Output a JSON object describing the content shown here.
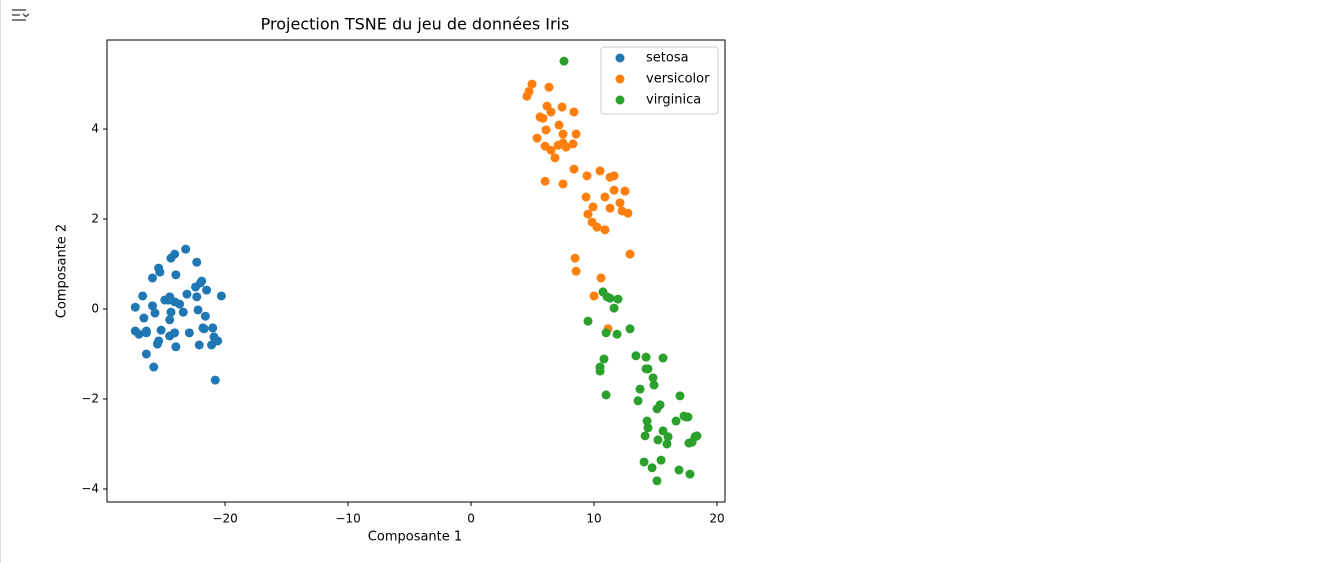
{
  "chart_data": {
    "type": "scatter",
    "title": "Projection TSNE du jeu de données Iris",
    "xlabel": "Composante 1",
    "ylabel": "Composante 2",
    "xlim": [
      -29.6,
      20.65
    ],
    "ylim": [
      -4.29,
      5.98
    ],
    "xticks": [
      {
        "value": -20,
        "label": "−20"
      },
      {
        "value": -10,
        "label": "−10"
      },
      0,
      10,
      20
    ],
    "yticks": [
      {
        "value": -4,
        "label": "−4"
      },
      {
        "value": -2,
        "label": "−2"
      },
      0,
      2,
      4
    ],
    "legend": "upper right",
    "series": [
      {
        "name": "setosa",
        "color": "#1f77b4",
        "x": [
          -27.3,
          -27.0,
          -26.4,
          -27.3,
          -26.7,
          -26.6,
          -26.4,
          -25.9,
          -25.7,
          -25.9,
          -25.4,
          -25.3,
          -26.4,
          -25.5,
          -25.4,
          -25.8,
          -25.2,
          -24.9,
          -24.5,
          -24.4,
          -24.5,
          -24.1,
          -24.0,
          -24.4,
          -24.1,
          -23.2,
          -23.1,
          -23.4,
          -24.1,
          -24.0,
          -24.5,
          -22.9,
          -22.3,
          -22.4,
          -22.0,
          -21.9,
          -22.2,
          -21.8,
          -22.1,
          -21.5,
          -21.6,
          -21.0,
          -21.1,
          -20.9,
          -20.6,
          -20.3,
          -20.8,
          -21.7,
          -22.3,
          -24.6,
          -23.7
        ],
        "y": [
          -0.49,
          -0.56,
          -0.49,
          0.04,
          0.29,
          -0.2,
          -0.53,
          0.07,
          -0.09,
          0.69,
          0.91,
          0.82,
          -1.0,
          -0.78,
          -0.71,
          -1.29,
          -0.47,
          0.2,
          0.27,
          -0.07,
          -0.24,
          0.16,
          0.76,
          1.13,
          1.22,
          1.33,
          0.33,
          -0.07,
          -0.53,
          -0.84,
          -0.6,
          -0.53,
          1.04,
          0.49,
          0.58,
          0.62,
          -0.02,
          -0.42,
          -0.8,
          0.42,
          -0.16,
          -0.42,
          -0.8,
          -0.62,
          -0.71,
          0.29,
          -1.58,
          -0.44,
          0.27,
          0.2,
          0.11
        ]
      },
      {
        "name": "versicolor",
        "color": "#ff7f0e",
        "x": [
          4.96,
          4.72,
          4.55,
          6.34,
          6.18,
          6.5,
          5.85,
          5.61,
          7.4,
          8.37,
          7.15,
          8.54,
          5.37,
          6.1,
          7.48,
          7.48,
          7.07,
          7.72,
          8.29,
          6.5,
          6.83,
          6.02,
          6.02,
          7.48,
          8.37,
          9.43,
          10.49,
          11.3,
          11.63,
          9.35,
          10.89,
          11.63,
          12.52,
          12.11,
          12.76,
          11.3,
          9.92,
          9.51,
          9.84,
          10.24,
          10.89,
          12.93,
          8.46,
          8.54,
          10.57,
          10.0,
          11.14,
          12.28
        ],
        "y": [
          5.0,
          4.84,
          4.73,
          4.93,
          4.51,
          4.38,
          4.24,
          4.27,
          4.49,
          4.38,
          4.09,
          3.89,
          3.8,
          3.98,
          3.89,
          3.69,
          3.64,
          3.6,
          3.67,
          3.53,
          3.36,
          3.62,
          2.84,
          2.78,
          3.11,
          2.96,
          3.07,
          2.93,
          2.96,
          2.49,
          2.49,
          2.64,
          2.62,
          2.36,
          2.13,
          2.24,
          2.27,
          2.11,
          1.93,
          1.82,
          1.76,
          1.22,
          1.13,
          0.84,
          0.69,
          0.29,
          -0.44,
          2.18
        ]
      },
      {
        "name": "virginica",
        "color": "#2ca02c",
        "x": [
          7.56,
          10.73,
          11.06,
          11.3,
          11.95,
          11.63,
          9.51,
          10.98,
          11.87,
          12.93,
          10.81,
          10.49,
          10.49,
          10.98,
          13.41,
          14.23,
          15.61,
          14.23,
          14.39,
          13.74,
          14.8,
          14.88,
          13.58,
          16.99,
          15.37,
          15.12,
          14.31,
          14.39,
          16.67,
          17.32,
          17.64,
          15.61,
          16.02,
          14.15,
          15.2,
          15.93,
          17.72,
          18.21,
          17.97,
          18.37,
          14.07,
          15.45,
          14.72,
          16.91,
          17.8,
          15.12,
          17.48
        ],
        "y": [
          5.51,
          0.38,
          0.27,
          0.24,
          0.22,
          0.02,
          -0.27,
          -0.53,
          -0.56,
          -0.44,
          -1.11,
          -1.29,
          -1.38,
          -1.91,
          -1.04,
          -1.07,
          -1.09,
          -1.33,
          -1.33,
          -1.78,
          -1.53,
          -1.69,
          -2.04,
          -1.93,
          -2.13,
          -2.22,
          -2.49,
          -2.64,
          -2.49,
          -2.38,
          -2.4,
          -2.71,
          -2.84,
          -2.82,
          -2.91,
          -3.0,
          -2.98,
          -2.84,
          -2.96,
          -2.82,
          -3.4,
          -3.36,
          -3.53,
          -3.58,
          -3.67,
          -3.82,
          -2.4
        ]
      }
    ]
  }
}
